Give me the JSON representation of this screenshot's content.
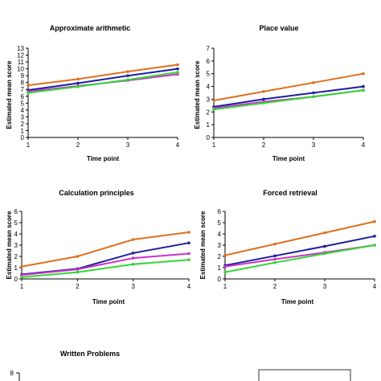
{
  "colors": {
    "orange": "#e0701e",
    "blue": "#1e1e9e",
    "magenta": "#cc33cc",
    "green": "#33d633",
    "axis": "#000000"
  },
  "chart_data": [
    {
      "type": "line",
      "title": "Approximate arithmetic",
      "xlabel": "Time point",
      "ylabel": "Estimated mean score",
      "x": [
        1,
        2,
        3,
        4
      ],
      "ylim": [
        0,
        13
      ],
      "yticks": [
        0,
        1,
        2,
        3,
        4,
        5,
        6,
        7,
        8,
        9,
        10,
        11,
        12,
        13
      ],
      "series": [
        {
          "color": "orange",
          "values": [
            7.6,
            8.5,
            9.6,
            10.6
          ]
        },
        {
          "color": "blue",
          "values": [
            6.9,
            7.9,
            9.0,
            10.0
          ]
        },
        {
          "color": "magenta",
          "values": [
            6.7,
            7.5,
            8.3,
            9.2
          ]
        },
        {
          "color": "green",
          "values": [
            6.5,
            7.4,
            8.4,
            9.5
          ]
        }
      ]
    },
    {
      "type": "line",
      "title": "Place value",
      "xlabel": "Time point",
      "ylabel": "Estimated mean score",
      "x": [
        1,
        2,
        3,
        4
      ],
      "ylim": [
        0,
        7
      ],
      "yticks": [
        0,
        1,
        2,
        3,
        4,
        5,
        6,
        7
      ],
      "series": [
        {
          "color": "orange",
          "values": [
            2.9,
            3.6,
            4.3,
            5.0
          ]
        },
        {
          "color": "blue",
          "values": [
            2.4,
            3.0,
            3.5,
            4.0
          ]
        },
        {
          "color": "magenta",
          "values": [
            2.3,
            2.8,
            3.2,
            3.7
          ]
        },
        {
          "color": "green",
          "values": [
            2.2,
            2.7,
            3.2,
            3.7
          ]
        }
      ]
    },
    {
      "type": "line",
      "title": "Calculation principles",
      "xlabel": "Time point",
      "ylabel": "Estimated mean score",
      "x": [
        1,
        2,
        3,
        4
      ],
      "ylim": [
        0,
        6
      ],
      "yticks": [
        0,
        1,
        2,
        3,
        4,
        5,
        6
      ],
      "series": [
        {
          "color": "orange",
          "values": [
            1.1,
            2.0,
            3.5,
            4.15
          ]
        },
        {
          "color": "blue",
          "values": [
            0.4,
            0.9,
            2.3,
            3.2
          ]
        },
        {
          "color": "magenta",
          "values": [
            0.35,
            0.85,
            1.85,
            2.25
          ]
        },
        {
          "color": "green",
          "values": [
            0.15,
            0.6,
            1.3,
            1.7
          ]
        }
      ]
    },
    {
      "type": "line",
      "title": "Forced retrieval",
      "xlabel": "Time point",
      "ylabel": "Estimated mean score",
      "x": [
        1,
        2,
        3,
        4
      ],
      "ylim": [
        0,
        6
      ],
      "yticks": [
        0,
        1,
        2,
        3,
        4,
        5,
        6
      ],
      "series": [
        {
          "color": "orange",
          "values": [
            2.1,
            3.1,
            4.1,
            5.1
          ]
        },
        {
          "color": "blue",
          "values": [
            1.2,
            2.05,
            2.9,
            3.8
          ]
        },
        {
          "color": "magenta",
          "values": [
            1.1,
            1.75,
            2.35,
            3.0
          ]
        },
        {
          "color": "green",
          "values": [
            0.6,
            1.45,
            2.25,
            3.0
          ]
        }
      ]
    },
    {
      "type": "line",
      "title": "Written Problems",
      "xlabel": "",
      "ylabel": "",
      "x": [],
      "ylim": [
        0,
        8
      ],
      "yticks": [
        8
      ],
      "series": []
    }
  ]
}
